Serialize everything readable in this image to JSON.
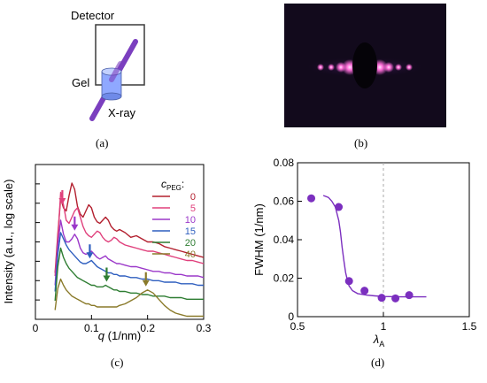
{
  "panels": {
    "a": {
      "label": "(a)",
      "detector_label": "Detector",
      "gel_label": "Gel",
      "xray_label": "X-ray"
    },
    "b": {
      "label": "(b)"
    },
    "c": {
      "label": "(c)"
    },
    "d": {
      "label": "(d)"
    }
  },
  "colors": {
    "detector_frame": "#3b3b3b",
    "gel": "#8fa8ff",
    "beam": "#7b3fbf",
    "pattern_bg": "#120a1c",
    "pattern_spot": "#ff6fd8",
    "fit_curve": "#7b2fbf",
    "points": "#7b2fbf"
  },
  "chart_data": [
    {
      "id": "c",
      "type": "line",
      "title": "",
      "xlabel": "q (1/nm)",
      "ylabel": "Intensity (a.u., log scale)",
      "xlim": [
        0,
        0.3
      ],
      "xticks": [
        "0",
        "0.1",
        "0.2",
        "0.3"
      ],
      "log_scale_y": true,
      "legend_title": "c_PEG:",
      "legend_title_main": "c",
      "legend_title_sub": "PEG",
      "legend_title_suffix": ":",
      "legend_position": "top-right",
      "series": [
        {
          "name": "0",
          "color": "#b3202f",
          "x": [
            0.035,
            0.04,
            0.045,
            0.05,
            0.055,
            0.06,
            0.065,
            0.07,
            0.075,
            0.08,
            0.085,
            0.09,
            0.095,
            0.1,
            0.105,
            0.11,
            0.115,
            0.12,
            0.125,
            0.13,
            0.135,
            0.14,
            0.145,
            0.15,
            0.16,
            0.17,
            0.18,
            0.19,
            0.2,
            0.21,
            0.22,
            0.23,
            0.24,
            0.25,
            0.26,
            0.27,
            0.28,
            0.29,
            0.3
          ],
          "y": [
            0.3,
            0.55,
            0.78,
            0.72,
            0.7,
            0.8,
            0.88,
            0.84,
            0.73,
            0.68,
            0.66,
            0.7,
            0.74,
            0.72,
            0.66,
            0.63,
            0.62,
            0.64,
            0.66,
            0.64,
            0.6,
            0.58,
            0.57,
            0.58,
            0.56,
            0.53,
            0.54,
            0.52,
            0.5,
            0.5,
            0.49,
            0.47,
            0.46,
            0.45,
            0.44,
            0.43,
            0.42,
            0.41,
            0.4
          ]
        },
        {
          "name": "5",
          "color": "#e0407c",
          "x": [
            0.035,
            0.04,
            0.045,
            0.05,
            0.055,
            0.06,
            0.065,
            0.07,
            0.075,
            0.08,
            0.085,
            0.09,
            0.095,
            0.1,
            0.105,
            0.11,
            0.115,
            0.12,
            0.125,
            0.13,
            0.135,
            0.14,
            0.145,
            0.15,
            0.16,
            0.17,
            0.18,
            0.19,
            0.2,
            0.21,
            0.22,
            0.23,
            0.24,
            0.25,
            0.26,
            0.27,
            0.28,
            0.29,
            0.3
          ],
          "y": [
            0.28,
            0.52,
            0.82,
            0.74,
            0.64,
            0.62,
            0.66,
            0.7,
            0.72,
            0.66,
            0.6,
            0.56,
            0.54,
            0.53,
            0.55,
            0.57,
            0.56,
            0.53,
            0.51,
            0.5,
            0.51,
            0.53,
            0.52,
            0.5,
            0.48,
            0.47,
            0.46,
            0.45,
            0.44,
            0.44,
            0.43,
            0.42,
            0.41,
            0.4,
            0.39,
            0.38,
            0.38,
            0.37,
            0.36
          ]
        },
        {
          "name": "10",
          "color": "#9b38c9",
          "x": [
            0.035,
            0.04,
            0.045,
            0.05,
            0.055,
            0.06,
            0.065,
            0.07,
            0.075,
            0.08,
            0.085,
            0.09,
            0.095,
            0.1,
            0.105,
            0.11,
            0.115,
            0.12,
            0.125,
            0.13,
            0.135,
            0.14,
            0.145,
            0.15,
            0.16,
            0.17,
            0.18,
            0.19,
            0.2,
            0.21,
            0.22,
            0.23,
            0.24,
            0.25,
            0.26,
            0.27,
            0.28,
            0.29,
            0.3
          ],
          "y": [
            0.22,
            0.48,
            0.64,
            0.55,
            0.5,
            0.5,
            0.52,
            0.55,
            0.52,
            0.46,
            0.43,
            0.42,
            0.43,
            0.44,
            0.42,
            0.4,
            0.39,
            0.4,
            0.41,
            0.39,
            0.38,
            0.37,
            0.36,
            0.36,
            0.35,
            0.34,
            0.34,
            0.33,
            0.32,
            0.31,
            0.31,
            0.3,
            0.3,
            0.29,
            0.29,
            0.28,
            0.28,
            0.28,
            0.27
          ]
        },
        {
          "name": "15",
          "color": "#2f5fbf",
          "x": [
            0.035,
            0.04,
            0.045,
            0.05,
            0.055,
            0.06,
            0.065,
            0.07,
            0.075,
            0.08,
            0.085,
            0.09,
            0.095,
            0.1,
            0.105,
            0.11,
            0.115,
            0.12,
            0.125,
            0.13,
            0.135,
            0.14,
            0.145,
            0.15,
            0.16,
            0.17,
            0.18,
            0.19,
            0.2,
            0.21,
            0.22,
            0.23,
            0.24,
            0.25,
            0.26,
            0.27,
            0.28,
            0.29,
            0.3
          ],
          "y": [
            0.18,
            0.42,
            0.56,
            0.52,
            0.48,
            0.45,
            0.43,
            0.41,
            0.39,
            0.37,
            0.36,
            0.36,
            0.37,
            0.38,
            0.36,
            0.34,
            0.33,
            0.32,
            0.31,
            0.3,
            0.3,
            0.29,
            0.29,
            0.28,
            0.28,
            0.27,
            0.27,
            0.26,
            0.26,
            0.25,
            0.25,
            0.24,
            0.24,
            0.24,
            0.23,
            0.23,
            0.23,
            0.22,
            0.22
          ]
        },
        {
          "name": "20",
          "color": "#2e7d32",
          "x": [
            0.035,
            0.04,
            0.045,
            0.05,
            0.055,
            0.06,
            0.065,
            0.07,
            0.075,
            0.08,
            0.085,
            0.09,
            0.095,
            0.1,
            0.105,
            0.11,
            0.115,
            0.12,
            0.125,
            0.13,
            0.135,
            0.14,
            0.145,
            0.15,
            0.16,
            0.17,
            0.18,
            0.19,
            0.2,
            0.21,
            0.22,
            0.23,
            0.24,
            0.25,
            0.26,
            0.27,
            0.28,
            0.29,
            0.3
          ],
          "y": [
            0.12,
            0.34,
            0.46,
            0.4,
            0.36,
            0.33,
            0.31,
            0.29,
            0.27,
            0.26,
            0.25,
            0.24,
            0.23,
            0.22,
            0.22,
            0.21,
            0.21,
            0.21,
            0.22,
            0.21,
            0.2,
            0.19,
            0.19,
            0.18,
            0.18,
            0.17,
            0.17,
            0.16,
            0.16,
            0.15,
            0.15,
            0.15,
            0.14,
            0.14,
            0.14,
            0.13,
            0.13,
            0.13,
            0.13
          ]
        },
        {
          "name": "40",
          "color": "#8a7a2a",
          "x": [
            0.035,
            0.04,
            0.045,
            0.05,
            0.055,
            0.06,
            0.065,
            0.07,
            0.075,
            0.08,
            0.085,
            0.09,
            0.095,
            0.1,
            0.105,
            0.11,
            0.115,
            0.12,
            0.125,
            0.13,
            0.135,
            0.14,
            0.145,
            0.15,
            0.16,
            0.17,
            0.18,
            0.19,
            0.2,
            0.21,
            0.22,
            0.23,
            0.24,
            0.25,
            0.26,
            0.27,
            0.28,
            0.29,
            0.3
          ],
          "y": [
            0.06,
            0.2,
            0.26,
            0.22,
            0.19,
            0.17,
            0.15,
            0.14,
            0.13,
            0.12,
            0.11,
            0.1,
            0.1,
            0.09,
            0.09,
            0.08,
            0.08,
            0.08,
            0.08,
            0.08,
            0.08,
            0.08,
            0.08,
            0.09,
            0.1,
            0.12,
            0.14,
            0.17,
            0.19,
            0.17,
            0.13,
            0.09,
            0.06,
            0.04,
            0.03,
            0.02,
            0.02,
            0.02,
            0.02
          ]
        }
      ],
      "peak_arrows": [
        {
          "series": "0",
          "q": 0.048,
          "color": "#e0407c"
        },
        {
          "series": "10",
          "q": 0.07,
          "color": "#9b38c9"
        },
        {
          "series": "15",
          "q": 0.097,
          "color": "#2f5fbf"
        },
        {
          "series": "20",
          "q": 0.127,
          "color": "#2e7d32"
        },
        {
          "series": "40",
          "q": 0.197,
          "color": "#8a7a2a"
        }
      ]
    },
    {
      "id": "d",
      "type": "scatter",
      "title": "",
      "xlabel": "λA",
      "xlabel_main": "λ",
      "xlabel_sub": "A",
      "ylabel": "FWHM (1/nm)",
      "xlim": [
        0.5,
        1.5
      ],
      "ylim": [
        0,
        0.08
      ],
      "xticks": [
        "0.5",
        "1",
        "1.5"
      ],
      "yticks": [
        "0",
        "0.02",
        "0.04",
        "0.06",
        "0.08"
      ],
      "reference_line_x": 1,
      "points": {
        "x": [
          0.58,
          0.74,
          0.8,
          0.89,
          0.99,
          1.07,
          1.15
        ],
        "y": [
          0.0615,
          0.057,
          0.0185,
          0.0135,
          0.0098,
          0.0095,
          0.0112
        ]
      },
      "fit": {
        "x": [
          0.65,
          0.68,
          0.7,
          0.72,
          0.74,
          0.75,
          0.76,
          0.77,
          0.78,
          0.79,
          0.8,
          0.82,
          0.85,
          0.9,
          0.95,
          1.0,
          1.1,
          1.25
        ],
        "y": [
          0.063,
          0.062,
          0.06,
          0.057,
          0.05,
          0.044,
          0.036,
          0.029,
          0.023,
          0.019,
          0.016,
          0.0135,
          0.012,
          0.0112,
          0.0108,
          0.0105,
          0.0103,
          0.0103
        ]
      }
    }
  ]
}
